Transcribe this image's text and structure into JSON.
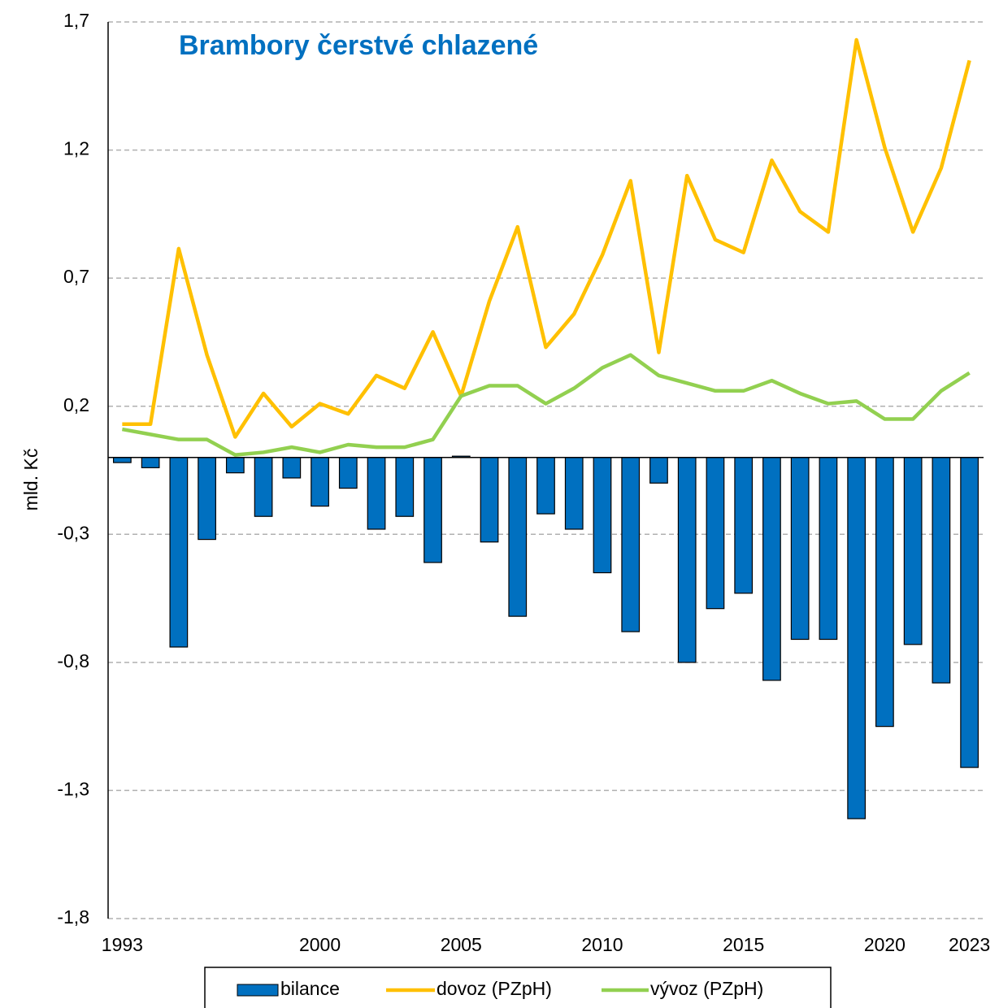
{
  "chart_data": {
    "type": "bar_line",
    "title": "Brambory čerstvé chlazené",
    "ylabel": "mld. Kč",
    "categories": [
      "1993",
      null,
      null,
      null,
      null,
      null,
      null,
      "2000",
      null,
      null,
      null,
      null,
      "2005",
      null,
      null,
      null,
      null,
      "2010",
      null,
      null,
      null,
      null,
      "2015",
      null,
      null,
      null,
      null,
      "2020",
      null,
      null,
      "2023"
    ],
    "series": [
      {
        "name": "bilance",
        "type": "bar",
        "color": "#0070c0",
        "values": [
          -0.02,
          -0.04,
          -0.74,
          -0.32,
          -0.06,
          -0.23,
          -0.08,
          -0.19,
          -0.12,
          -0.28,
          -0.23,
          -0.41,
          0.005,
          -0.33,
          -0.62,
          -0.22,
          -0.28,
          -0.45,
          -0.68,
          -0.1,
          -0.8,
          -0.59,
          -0.53,
          -0.87,
          -0.71,
          -0.71,
          -1.41,
          -1.05,
          -0.73,
          -0.88,
          -1.21
        ]
      },
      {
        "name": "dovoz (PZpH)",
        "type": "line",
        "color": "#ffc000",
        "values": [
          0.13,
          0.13,
          0.815,
          0.4,
          0.08,
          0.25,
          0.12,
          0.21,
          0.17,
          0.32,
          0.27,
          0.49,
          0.24,
          0.61,
          0.9,
          0.43,
          0.56,
          0.79,
          1.08,
          0.41,
          1.1,
          0.85,
          0.8,
          1.16,
          0.96,
          0.88,
          1.63,
          1.21,
          0.88,
          1.13,
          1.55
        ]
      },
      {
        "name": "vývoz (PZpH)",
        "type": "line",
        "color": "#92d050",
        "values": [
          0.11,
          0.09,
          0.07,
          0.07,
          0.01,
          0.02,
          0.04,
          0.02,
          0.05,
          0.04,
          0.04,
          0.07,
          0.24,
          0.28,
          0.28,
          0.21,
          0.27,
          0.35,
          0.4,
          0.32,
          0.29,
          0.26,
          0.26,
          0.3,
          0.25,
          0.21,
          0.22,
          0.15,
          0.15,
          0.26,
          0.33
        ]
      }
    ],
    "ylim": [
      -1.8,
      1.7
    ],
    "yticks": [
      {
        "value": -1.8,
        "label": "-1,8"
      },
      {
        "value": -1.3,
        "label": "-1,3"
      },
      {
        "value": -0.8,
        "label": "-0,8"
      },
      {
        "value": -0.3,
        "label": "-0,3"
      },
      {
        "value": 0.2,
        "label": "0,2"
      },
      {
        "value": 0.7,
        "label": "0,7"
      },
      {
        "value": 1.2,
        "label": "1,2"
      },
      {
        "value": 1.7,
        "label": "1,7"
      }
    ],
    "grid": true,
    "legend": "bottom"
  }
}
